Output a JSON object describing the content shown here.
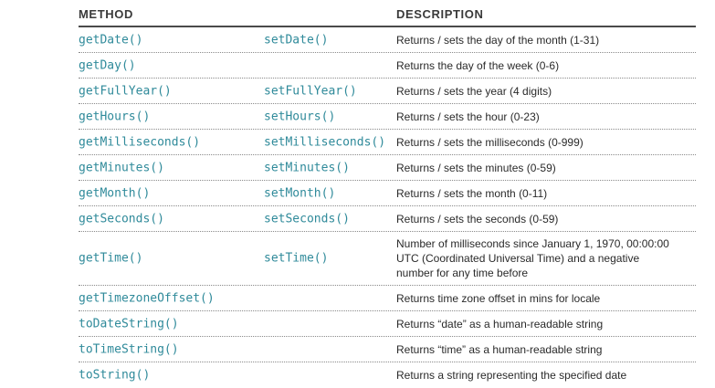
{
  "headers": {
    "method": "METHOD",
    "description": "DESCRIPTION"
  },
  "rows": [
    {
      "get": "getDate()",
      "set": "setDate()",
      "desc": "Returns / sets the day of the month (1-31)"
    },
    {
      "get": "getDay()",
      "set": "",
      "desc": "Returns the day of the week (0-6)"
    },
    {
      "get": "getFullYear()",
      "set": "setFullYear()",
      "desc": "Returns / sets the year (4 digits)"
    },
    {
      "get": "getHours()",
      "set": "setHours()",
      "desc": "Returns / sets the hour (0-23)"
    },
    {
      "get": "getMilliseconds()",
      "set": "setMilliseconds()",
      "desc": "Returns / sets the milliseconds (0-999)"
    },
    {
      "get": "getMinutes()",
      "set": "setMinutes()",
      "desc": "Returns / sets the minutes (0-59)"
    },
    {
      "get": "getMonth()",
      "set": "setMonth()",
      "desc": "Returns / sets the month (0-11)"
    },
    {
      "get": "getSeconds()",
      "set": "setSeconds()",
      "desc": "Returns / sets the seconds (0-59)"
    },
    {
      "get": "getTime()",
      "set": "setTime()",
      "desc": "Number of milliseconds since January 1, 1970, 00:00:00 UTC (Coordinated Universal Time) and a negative number for any time before"
    },
    {
      "get": "getTimezoneOffset()",
      "set": "",
      "desc": "Returns time zone offset in mins for locale"
    },
    {
      "get": "toDateString()",
      "set": "",
      "desc": "Returns “date” as a human-readable string"
    },
    {
      "get": "toTimeString()",
      "set": "",
      "desc": "Returns “time” as a human-readable string"
    },
    {
      "get": "toString()",
      "set": "",
      "desc": "Returns a string representing the specified date"
    }
  ]
}
